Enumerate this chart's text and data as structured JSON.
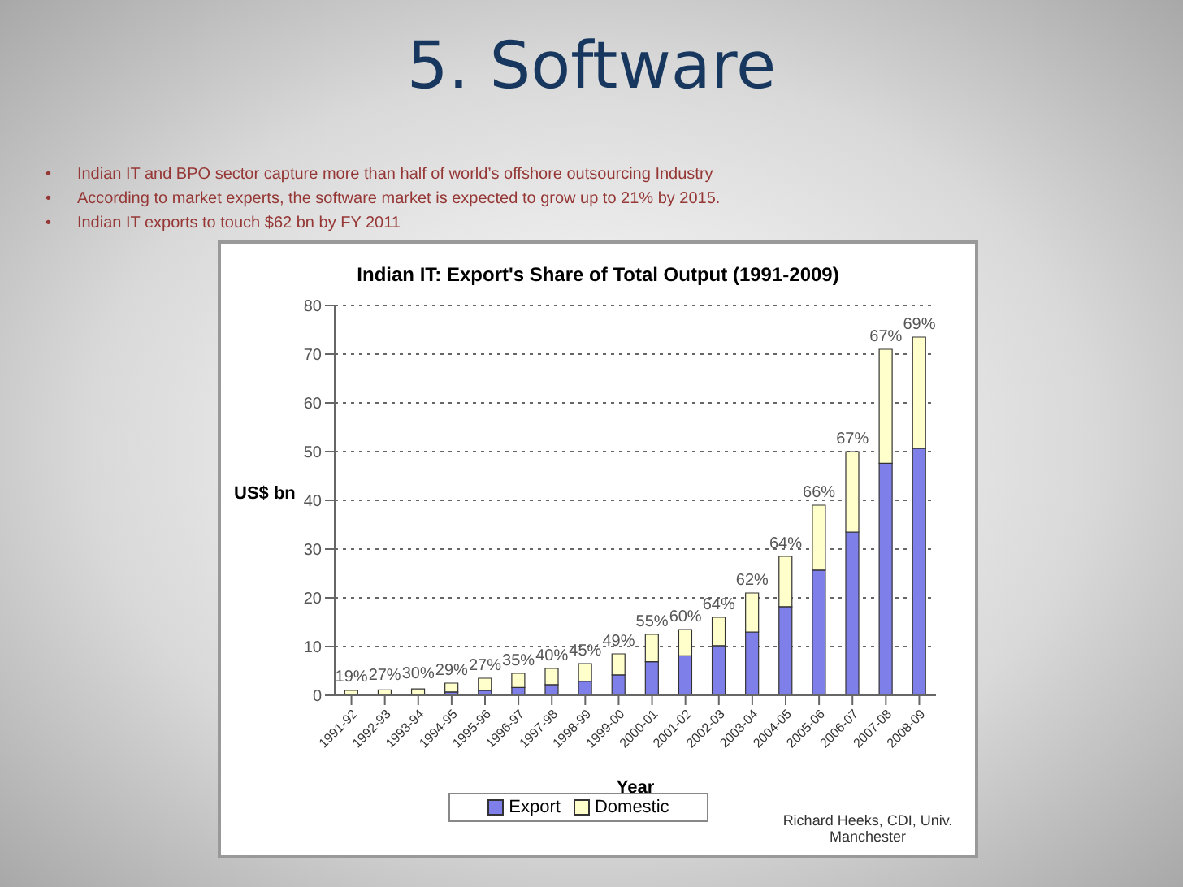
{
  "chart_data": {
    "type": "bar",
    "title": "5. Software",
    "subtitle": "Indian IT: Export's Share of Total Output (1991-2009)",
    "xlabel": "Year",
    "ylabel": "US$ bn",
    "categories": [
      "1991-92",
      "1992-93",
      "1993-94",
      "1994-95",
      "1995-96",
      "1996-97",
      "1997-98",
      "1998-99",
      "1999-00",
      "2000-01",
      "2001-02",
      "2002-03",
      "2003-04",
      "2004-05",
      "2005-06",
      "2006-07",
      "2007-08",
      "2008-09"
    ],
    "series": [
      {
        "name": "Export",
        "color": "#7f7fea",
        "values": [
          null,
          null,
          null,
          0.7,
          1.0,
          1.6,
          2.2,
          2.9,
          4.2,
          6.9,
          8.1,
          10.2,
          13.0,
          18.2,
          25.7,
          33.5,
          47.6,
          50.7
        ]
      },
      {
        "name": "Domestic",
        "color": "#ffffcc",
        "values": [
          1.0,
          1.1,
          1.3,
          1.8,
          2.5,
          2.9,
          3.3,
          3.6,
          4.3,
          5.6,
          5.4,
          5.8,
          8.0,
          10.3,
          13.3,
          16.5,
          23.4,
          22.8
        ]
      }
    ],
    "stacked": true,
    "ylim": [
      0,
      80
    ],
    "yticks": [
      0,
      10,
      20,
      30,
      40,
      50,
      60,
      70,
      80
    ],
    "grid": "y",
    "legend": "bottom",
    "annotations": [
      "•\tIndian IT and BPO sector capture more than half of world’s offshore outsourcing Industry",
      "•\tAccording to market experts, the software market is expected to grow up to 21% by 2015.",
      "•\tIndian IT exports to touch $62 bn by FY 2011",
      {
        "text": "19%",
        "x": "1991-92",
        "y": 1.2
      },
      {
        "text": "27%",
        "x": "1992-93",
        "y": 1.5
      },
      {
        "text": "30%",
        "x": "1993-94",
        "y": 1.8
      },
      {
        "text": "29%",
        "x": "1994-95",
        "y": 2.5
      },
      {
        "text": "27%",
        "x": "1995-96",
        "y": 3.5
      },
      {
        "text": "35%",
        "x": "1996-97",
        "y": 4.5
      },
      {
        "text": "40%",
        "x": "1997-98",
        "y": 5.5
      },
      {
        "text": "45%",
        "x": "1998-99",
        "y": 6.5
      },
      {
        "text": "49%",
        "x": "1999-00",
        "y": 8.5
      },
      {
        "text": "55%",
        "x": "2000-01",
        "y": 12.5
      },
      {
        "text": "60%",
        "x": "2001-02",
        "y": 13.5
      },
      {
        "text": "64%",
        "x": "2002-03",
        "y": 16
      },
      {
        "text": "62%",
        "x": "2003-04",
        "y": 21
      },
      {
        "text": "64%",
        "x": "2004-05",
        "y": 28.5
      },
      {
        "text": "66%",
        "x": "2005-06",
        "y": 39
      },
      {
        "text": "67%",
        "x": "2006-07",
        "y": 50
      },
      {
        "text": "67%",
        "x": "2007-08",
        "y": 71
      },
      {
        "text": "69%",
        "x": "2008-09",
        "y": 73.5
      },
      "Richard Heeks, CDI, Univ. Manchester"
    ]
  }
}
